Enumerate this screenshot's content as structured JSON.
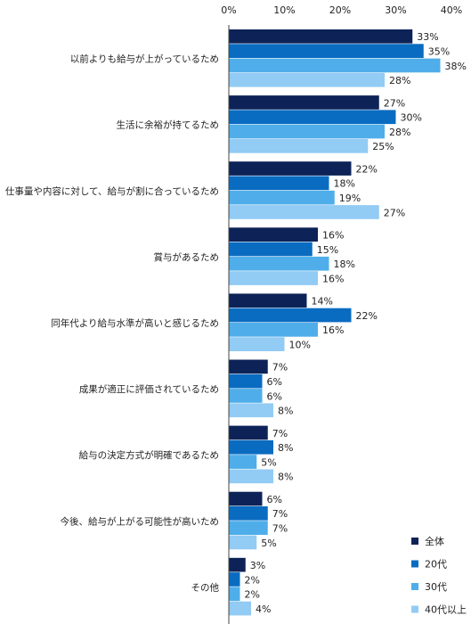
{
  "chart_data": {
    "type": "bar",
    "orientation": "horizontal",
    "categories": [
      "以前よりも給与が上がっているため",
      "生活に余裕が持てるため",
      "仕事量や内容に対して、給与が割に合っているため",
      "賞与があるため",
      "同年代より給与水準が高いと感じるため",
      "成果が適正に評価されているため",
      "給与の決定方式が明確であるため",
      "今後、給与が上がる可能性が高いため",
      "その他"
    ],
    "series": [
      {
        "name": "全体",
        "color": "#0d2357",
        "values": [
          33,
          27,
          22,
          16,
          14,
          7,
          7,
          6,
          3
        ]
      },
      {
        "name": "20代",
        "color": "#0a6cc1",
        "values": [
          35,
          30,
          18,
          15,
          22,
          6,
          8,
          7,
          2
        ]
      },
      {
        "name": "30代",
        "color": "#4faee9",
        "values": [
          38,
          28,
          19,
          18,
          16,
          6,
          5,
          7,
          2
        ]
      },
      {
        "name": "40代以上",
        "color": "#92cbf4",
        "values": [
          28,
          25,
          27,
          16,
          10,
          8,
          8,
          5,
          4
        ]
      }
    ],
    "x_ticks": [
      "0%",
      "10%",
      "20%",
      "30%",
      "40%"
    ],
    "xlim": [
      0,
      40
    ],
    "value_suffix": "%",
    "legend_position": "bottom-right",
    "title": "",
    "xlabel": "",
    "ylabel": ""
  }
}
